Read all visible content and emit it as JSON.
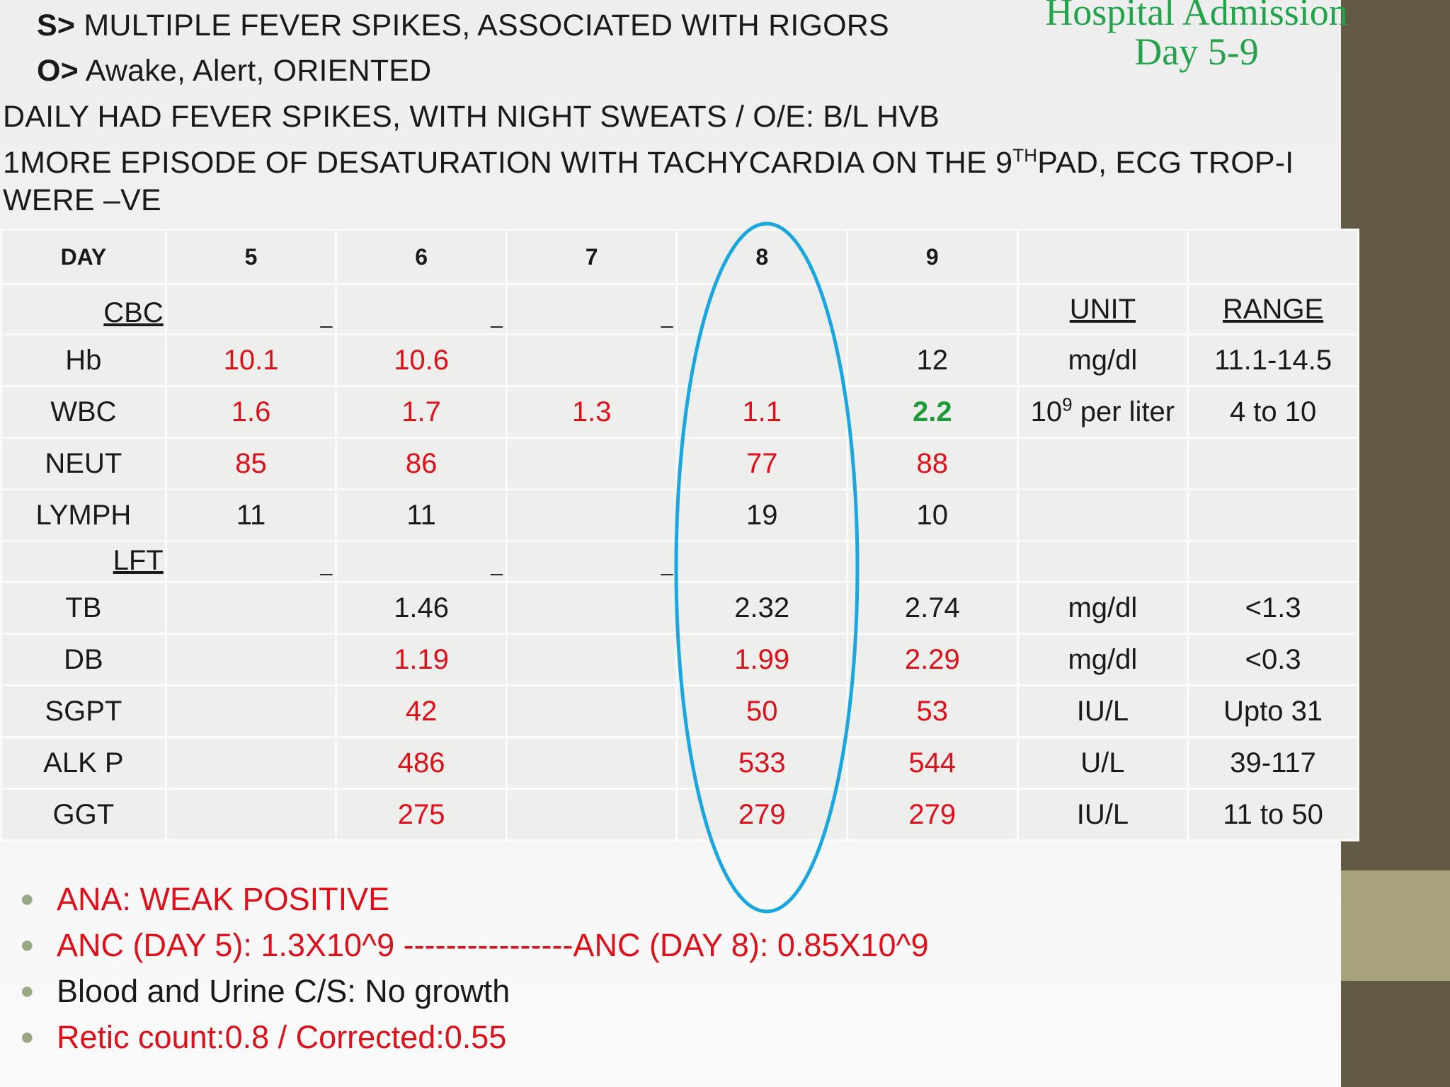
{
  "heading": {
    "line1": "Hospital Admission",
    "line2": "Day 5-9"
  },
  "notes": {
    "s_prefix": "S>",
    "s_text": " MULTIPLE FEVER SPIKES, ASSOCIATED WITH RIGORS",
    "o_prefix": "O>",
    "o_text": " Awake, Alert, ORIENTED",
    "line3": "DAILY HAD FEVER SPIKES, WITH NIGHT SWEATS / O/E: B/L HVB",
    "line4_a": "1MORE EPISODE OF DESATURATION WITH TACHYCARDIA ON THE 9",
    "line4_sup": "TH",
    "line4_b": "PAD, ECG TROP-I",
    "line5": "WERE –VE"
  },
  "table": {
    "header": {
      "day": "DAY",
      "d5": "5",
      "d6": "6",
      "d7": "7",
      "d8": "8",
      "d9": "9"
    },
    "cbc": {
      "label": "CBC",
      "dash": "_",
      "unit": "UNIT",
      "range": "RANGE"
    },
    "lft": {
      "label": "LFT",
      "dash": "_"
    },
    "rows": {
      "hb": {
        "name": "Hb",
        "d5": "10.1",
        "d6": "10.6",
        "d7": "",
        "d8": "",
        "d9": "12",
        "unit": "mg/dl",
        "range": "11.1-14.5"
      },
      "wbc": {
        "name": "WBC",
        "d5": "1.6",
        "d6": "1.7",
        "d7": "1.3",
        "d8": "1.1",
        "d9": "2.2",
        "unit_a": "10",
        "unit_sup": "9",
        "unit_b": " per liter",
        "range": "4 to 10"
      },
      "neut": {
        "name": "NEUT",
        "d5": "85",
        "d6": "86",
        "d7": "",
        "d8": "77",
        "d9": "88",
        "unit": "",
        "range": ""
      },
      "lymph": {
        "name": "LYMPH",
        "d5": "11",
        "d6": "11",
        "d7": "",
        "d8": "19",
        "d9": "10",
        "unit": "",
        "range": ""
      },
      "tb": {
        "name": "TB",
        "d5": "",
        "d6": "1.46",
        "d7": "",
        "d8": "2.32",
        "d9": "2.74",
        "unit": "mg/dl",
        "range": "<1.3"
      },
      "db": {
        "name": "DB",
        "d5": "",
        "d6": "1.19",
        "d7": "",
        "d8": "1.99",
        "d9": "2.29",
        "unit": "mg/dl",
        "range": "<0.3"
      },
      "sgpt": {
        "name": "SGPT",
        "d5": "",
        "d6": "42",
        "d7": "",
        "d8": "50",
        "d9": "53",
        "unit": "IU/L",
        "range": "Upto 31"
      },
      "alkp": {
        "name": "ALK P",
        "d5": "",
        "d6": "486",
        "d7": "",
        "d8": "533",
        "d9": "544",
        "unit": "U/L",
        "range": "39-117"
      },
      "ggt": {
        "name": "GGT",
        "d5": "",
        "d6": "275",
        "d7": "",
        "d8": "279",
        "d9": "279",
        "unit": "IU/L",
        "range": "11 to 50"
      }
    }
  },
  "bullets": {
    "b1": "ANA: WEAK POSITIVE",
    "b2": "ANC (DAY 5): 1.3X10^9 ----------------ANC (DAY 8): 0.85X10^9",
    "b3": "Blood and Urine C/S: No growth",
    "b4": "Retic count:0.8 / Corrected:0.55"
  },
  "colors": {
    "abnormal": "#e0101a",
    "improved": "#1f9a3a",
    "heading": "#22a44a",
    "highlight_oval": "#1aa7e0"
  }
}
